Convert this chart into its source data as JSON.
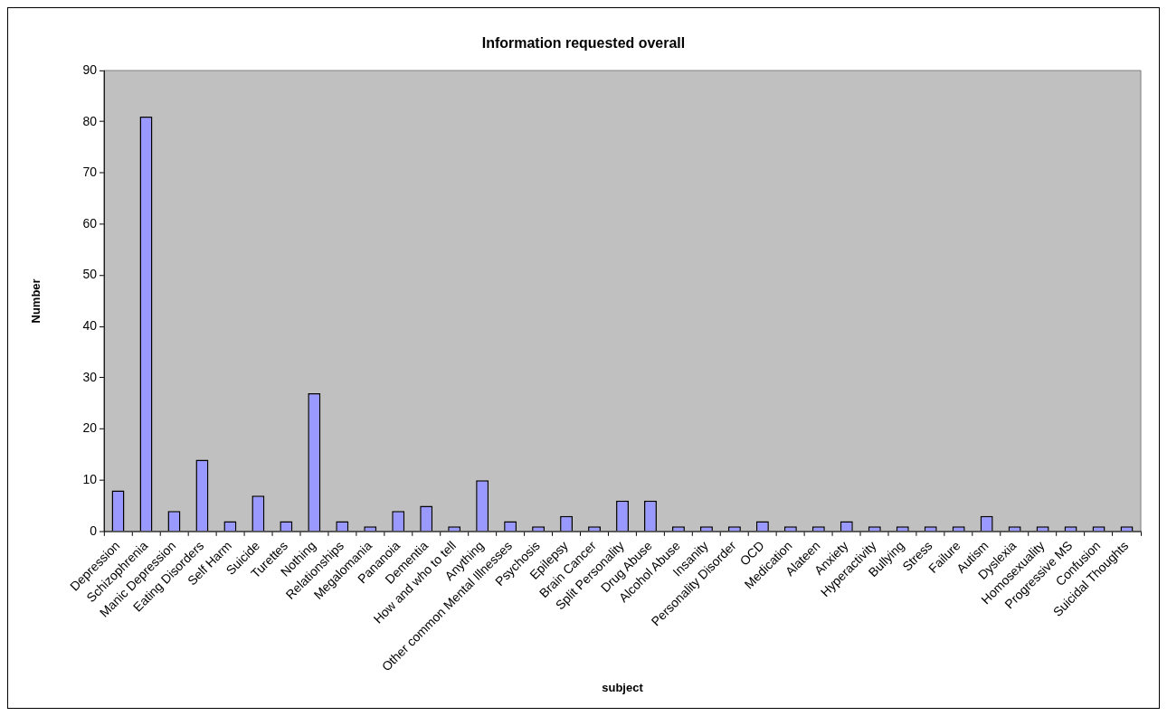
{
  "chart_data": {
    "type": "bar",
    "title": "Information requested overall",
    "xlabel": "subject",
    "ylabel": "Number",
    "categories": [
      "Depression",
      "Schizophrenia",
      "Manic Depression",
      "Eating Disorders",
      "Self Harm",
      "Suicide",
      "Turettes",
      "Nothing",
      "Relationships",
      "Megalomania",
      "Pananoia",
      "Dementia",
      "How and who to tell",
      "Anything",
      "Other common Mental Illnesses",
      "Psychosis",
      "Epilepsy",
      "Brain Cancer",
      "Split Personality",
      "Drug Abuse",
      "Alcohol Abuse",
      "Insanity",
      "Personality Disorder",
      "OCD",
      "Medication",
      "Alateen",
      "Anxiety",
      "Hyperactivity",
      "Bullying",
      "Stress",
      "Failure",
      "Autism",
      "Dyslexia",
      "Homosexuality",
      "Progressive MS",
      "Confusion",
      "Suicidal Thoughts"
    ],
    "values": [
      8,
      81,
      4,
      14,
      2,
      7,
      2,
      27,
      2,
      1,
      4,
      5,
      1,
      10,
      2,
      1,
      3,
      1,
      6,
      6,
      1,
      1,
      1,
      2,
      1,
      1,
      2,
      1,
      1,
      1,
      1,
      3,
      1,
      1,
      1,
      1,
      1
    ],
    "color": "#9999ff",
    "ylim": [
      0,
      90
    ],
    "yticks": [
      0,
      10,
      20,
      30,
      40,
      50,
      60,
      70,
      80,
      90
    ],
    "grid": false,
    "legend": false
  }
}
